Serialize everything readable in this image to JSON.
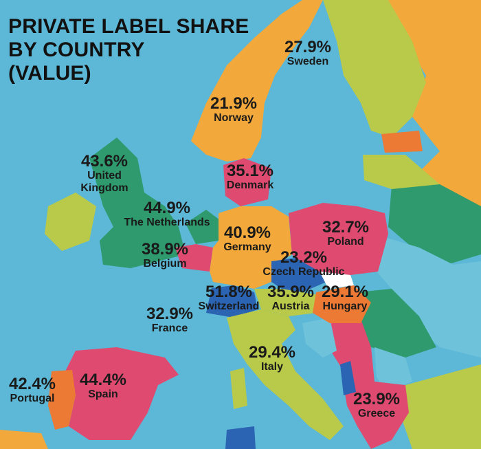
{
  "title": {
    "line1": "PRIVATE LABEL SHARE",
    "line2": "BY COUNTRY",
    "line3": "(VALUE)"
  },
  "colors": {
    "sea": "#5cb8d6",
    "green": "#2e9a6e",
    "orange": "#f2a83a",
    "pink": "#df4a70",
    "blue": "#2b64b2",
    "lime": "#b9ca4a",
    "red_orange": "#ec7a34",
    "light_blue": "#6ec3da",
    "white": "#ffffff"
  },
  "countries": [
    {
      "name": "Sweden",
      "share": "27.9%"
    },
    {
      "name": "Norway",
      "share": "21.9%"
    },
    {
      "name": "United Kingdom",
      "share": "43.6%"
    },
    {
      "name": "Denmark",
      "share": "35.1%"
    },
    {
      "name": "The Netherlands",
      "share": "44.9%"
    },
    {
      "name": "Belgium",
      "share": "38.9%"
    },
    {
      "name": "Germany",
      "share": "40.9%"
    },
    {
      "name": "Poland",
      "share": "32.7%"
    },
    {
      "name": "Czech Republic",
      "share": "23.2%"
    },
    {
      "name": "Switzerland",
      "share": "51.8%"
    },
    {
      "name": "Austria",
      "share": "35.9%"
    },
    {
      "name": "Hungary",
      "share": "29.1%"
    },
    {
      "name": "France",
      "share": "32.9%"
    },
    {
      "name": "Italy",
      "share": "29.4%"
    },
    {
      "name": "Portugal",
      "share": "42.4%"
    },
    {
      "name": "Spain",
      "share": "44.4%"
    },
    {
      "name": "Greece",
      "share": "23.9%"
    }
  ]
}
